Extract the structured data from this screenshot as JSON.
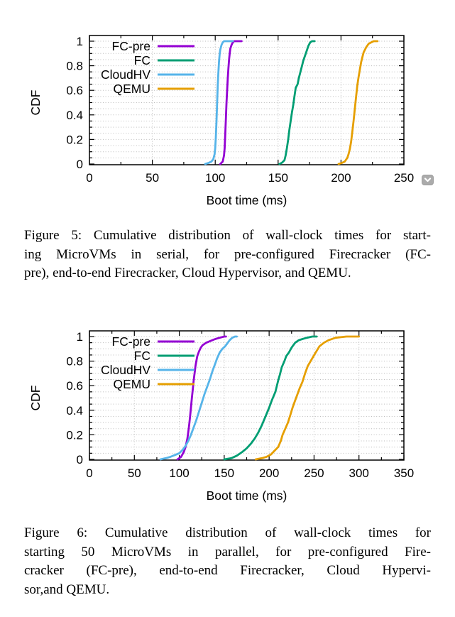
{
  "figures": [
    {
      "name": "Figure 5",
      "caption_lines": [
        "Figure 5: Cumulative distribution of wall-clock times for start-",
        "ing MicroVMs in serial, for pre-configured Firecracker (FC-",
        "pre), end-to-end Firecracker, Cloud Hypervisor, and QEMU."
      ]
    },
    {
      "name": "Figure 6",
      "caption_lines": [
        "Figure 6: Cumulative distribution of wall-clock times for",
        "starting 50 MicroVMs in parallel, for pre-configured Fire-",
        "cracker (FC-pre), end-to-end Firecracker, Cloud Hypervi-",
        "sor,and QEMU."
      ]
    }
  ],
  "badge": {
    "icon": "chevron-down",
    "background": "#ababab",
    "glyph_color": "#ffffff"
  },
  "chart_data": [
    {
      "type": "line",
      "variant": "cdf",
      "title": "",
      "xlabel": "Boot time (ms)",
      "ylabel": "CDF",
      "xlim": [
        0,
        250
      ],
      "xticks": [
        0,
        50,
        100,
        150,
        200,
        250
      ],
      "x_minor_step": 25,
      "ylim": [
        0,
        1
      ],
      "yticks": [
        0,
        0.2,
        0.4,
        0.6,
        0.8,
        1
      ],
      "y_minor_step": 0.05,
      "grid": "dotted; horizontal every 0.05, vertical at major x ticks",
      "legend_position": "top-left",
      "series": [
        {
          "name": "FC-pre",
          "color": "#9400d3",
          "points": [
            [
              104,
              0
            ],
            [
              106,
              0.02
            ],
            [
              107,
              0.07
            ],
            [
              107.5,
              0.13
            ],
            [
              108,
              0.25
            ],
            [
              108.5,
              0.38
            ],
            [
              109,
              0.5
            ],
            [
              109.5,
              0.6
            ],
            [
              110,
              0.7
            ],
            [
              110.5,
              0.78
            ],
            [
              111,
              0.85
            ],
            [
              111.5,
              0.9
            ],
            [
              112,
              0.94
            ],
            [
              113,
              0.97
            ],
            [
              114,
              0.99
            ],
            [
              115,
              1.0
            ],
            [
              121,
              1.0
            ]
          ]
        },
        {
          "name": "FC",
          "color": "#009e73",
          "points": [
            [
              151,
              0
            ],
            [
              153,
              0.01
            ],
            [
              155,
              0.03
            ],
            [
              156,
              0.07
            ],
            [
              157,
              0.13
            ],
            [
              158,
              0.2
            ],
            [
              159,
              0.28
            ],
            [
              160,
              0.35
            ],
            [
              161,
              0.42
            ],
            [
              162,
              0.48
            ],
            [
              163,
              0.55
            ],
            [
              164,
              0.62
            ],
            [
              165.5,
              0.65
            ],
            [
              166.5,
              0.7
            ],
            [
              168,
              0.76
            ],
            [
              169,
              0.8
            ],
            [
              170,
              0.84
            ],
            [
              171,
              0.87
            ],
            [
              172,
              0.9
            ],
            [
              173,
              0.93
            ],
            [
              174,
              0.96
            ],
            [
              175.5,
              0.99
            ],
            [
              177,
              1.0
            ],
            [
              179,
              1.0
            ]
          ]
        },
        {
          "name": "CloudHV",
          "color": "#56b4e9",
          "points": [
            [
              92,
              0
            ],
            [
              95,
              0.01
            ],
            [
              97,
              0.02
            ],
            [
              98.5,
              0.04
            ],
            [
              99.5,
              0.08
            ],
            [
              100,
              0.13
            ],
            [
              100.5,
              0.22
            ],
            [
              101,
              0.35
            ],
            [
              101.5,
              0.5
            ],
            [
              102,
              0.63
            ],
            [
              102.5,
              0.74
            ],
            [
              103,
              0.83
            ],
            [
              103.5,
              0.89
            ],
            [
              104,
              0.93
            ],
            [
              105,
              0.97
            ],
            [
              106,
              0.99
            ],
            [
              107,
              1.0
            ],
            [
              114,
              1.0
            ]
          ]
        },
        {
          "name": "QEMU",
          "color": "#e69f00",
          "points": [
            [
              198,
              0
            ],
            [
              201,
              0.01
            ],
            [
              203,
              0.02
            ],
            [
              205,
              0.05
            ],
            [
              206,
              0.08
            ],
            [
              207,
              0.12
            ],
            [
              208,
              0.18
            ],
            [
              209,
              0.26
            ],
            [
              210,
              0.35
            ],
            [
              211,
              0.45
            ],
            [
              212,
              0.55
            ],
            [
              213,
              0.64
            ],
            [
              214,
              0.71
            ],
            [
              215,
              0.77
            ],
            [
              216,
              0.83
            ],
            [
              217,
              0.87
            ],
            [
              218,
              0.91
            ],
            [
              219,
              0.93
            ],
            [
              220,
              0.95
            ],
            [
              222,
              0.98
            ],
            [
              224,
              0.99
            ],
            [
              226,
              1.0
            ],
            [
              229,
              1.0
            ]
          ]
        }
      ]
    },
    {
      "type": "line",
      "variant": "cdf",
      "title": "",
      "xlabel": "Boot time (ms)",
      "ylabel": "CDF",
      "xlim": [
        0,
        350
      ],
      "xticks": [
        0,
        50,
        100,
        150,
        200,
        250,
        300,
        350
      ],
      "x_minor_step": 25,
      "ylim": [
        0,
        1
      ],
      "yticks": [
        0,
        0.2,
        0.4,
        0.6,
        0.8,
        1
      ],
      "y_minor_step": 0.05,
      "grid": "dotted; horizontal every 0.05, vertical at major x ticks",
      "legend_position": "top-left",
      "series": [
        {
          "name": "FC-pre",
          "color": "#9400d3",
          "points": [
            [
              98,
              0
            ],
            [
              102,
              0.02
            ],
            [
              105,
              0.06
            ],
            [
              107,
              0.1
            ],
            [
              109,
              0.17
            ],
            [
              110,
              0.22
            ],
            [
              111,
              0.28
            ],
            [
              112,
              0.35
            ],
            [
              113,
              0.42
            ],
            [
              114,
              0.5
            ],
            [
              115,
              0.57
            ],
            [
              116,
              0.64
            ],
            [
              117,
              0.7
            ],
            [
              118,
              0.76
            ],
            [
              119,
              0.8
            ],
            [
              120,
              0.84
            ],
            [
              122,
              0.88
            ],
            [
              124,
              0.91
            ],
            [
              126,
              0.93
            ],
            [
              130,
              0.95
            ],
            [
              135,
              0.965
            ],
            [
              140,
              0.98
            ],
            [
              145,
              0.99
            ],
            [
              150,
              1.0
            ],
            [
              152,
              1.0
            ]
          ]
        },
        {
          "name": "FC",
          "color": "#009e73",
          "points": [
            [
              150,
              0
            ],
            [
              158,
              0.01
            ],
            [
              164,
              0.03
            ],
            [
              170,
              0.06
            ],
            [
              175,
              0.09
            ],
            [
              180,
              0.13
            ],
            [
              184,
              0.17
            ],
            [
              188,
              0.22
            ],
            [
              192,
              0.28
            ],
            [
              196,
              0.35
            ],
            [
              200,
              0.42
            ],
            [
              203,
              0.48
            ],
            [
              207,
              0.55
            ],
            [
              210,
              0.64
            ],
            [
              212,
              0.69
            ],
            [
              214,
              0.75
            ],
            [
              217,
              0.8
            ],
            [
              219,
              0.84
            ],
            [
              222,
              0.87
            ],
            [
              225,
              0.91
            ],
            [
              229,
              0.95
            ],
            [
              233,
              0.97
            ],
            [
              237,
              0.98
            ],
            [
              242,
              0.99
            ],
            [
              248,
              1.0
            ],
            [
              253,
              1.0
            ]
          ]
        },
        {
          "name": "CloudHV",
          "color": "#56b4e9",
          "points": [
            [
              79,
              0
            ],
            [
              85,
              0.01
            ],
            [
              90,
              0.02
            ],
            [
              95,
              0.035
            ],
            [
              100,
              0.05
            ],
            [
              104,
              0.08
            ],
            [
              107,
              0.11
            ],
            [
              110,
              0.15
            ],
            [
              113,
              0.2
            ],
            [
              116,
              0.26
            ],
            [
              119,
              0.32
            ],
            [
              122,
              0.39
            ],
            [
              125,
              0.46
            ],
            [
              128,
              0.53
            ],
            [
              131,
              0.59
            ],
            [
              134,
              0.65
            ],
            [
              137,
              0.72
            ],
            [
              140,
              0.78
            ],
            [
              142,
              0.82
            ],
            [
              145,
              0.87
            ],
            [
              148,
              0.9
            ],
            [
              151,
              0.92
            ],
            [
              153,
              0.94
            ],
            [
              156,
              0.97
            ],
            [
              159,
              0.99
            ],
            [
              162,
              1.0
            ],
            [
              164,
              1.0
            ]
          ]
        },
        {
          "name": "QEMU",
          "color": "#e69f00",
          "points": [
            [
              185,
              0
            ],
            [
              192,
              0.01
            ],
            [
              197,
              0.02
            ],
            [
              202,
              0.04
            ],
            [
              206,
              0.07
            ],
            [
              210,
              0.1
            ],
            [
              213,
              0.15
            ],
            [
              215,
              0.2
            ],
            [
              218,
              0.25
            ],
            [
              221,
              0.3
            ],
            [
              224,
              0.37
            ],
            [
              226,
              0.42
            ],
            [
              229,
              0.48
            ],
            [
              231,
              0.52
            ],
            [
              234,
              0.58
            ],
            [
              237,
              0.63
            ],
            [
              240,
              0.7
            ],
            [
              243,
              0.76
            ],
            [
              247,
              0.81
            ],
            [
              251,
              0.86
            ],
            [
              256,
              0.92
            ],
            [
              261,
              0.95
            ],
            [
              266,
              0.97
            ],
            [
              274,
              0.99
            ],
            [
              286,
              1.0
            ],
            [
              300,
              1.0
            ]
          ]
        }
      ]
    }
  ]
}
